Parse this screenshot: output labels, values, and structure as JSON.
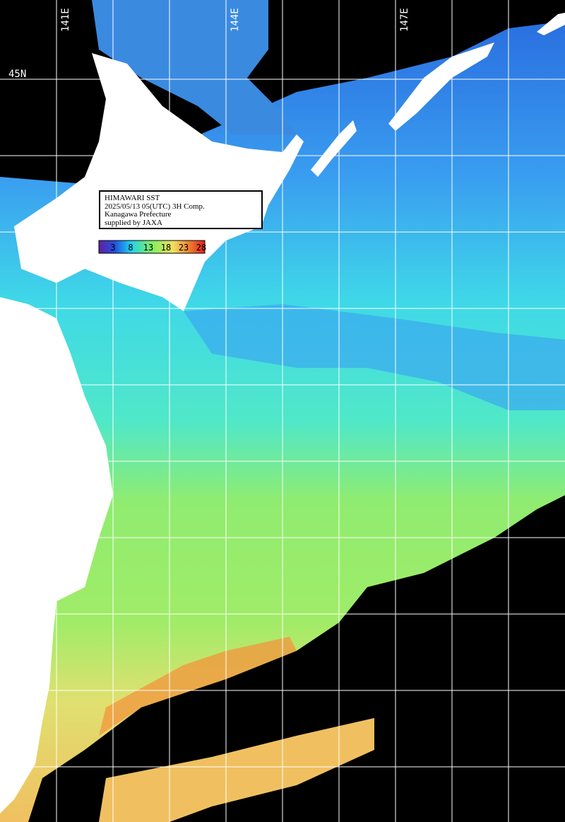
{
  "header": {
    "lines": [
      "HIMAWARI SST",
      "2025/05/13 05(UTC) 3H Comp.",
      "Kanagawa Prefecture",
      "supplied by JAXA"
    ]
  },
  "colorbar": {
    "ticks": [
      3,
      8,
      13,
      18,
      23,
      28
    ]
  },
  "grid": {
    "longitude_labels": [
      "141E",
      "144E",
      "147E"
    ],
    "latitude_labels": [
      "45N"
    ]
  }
}
